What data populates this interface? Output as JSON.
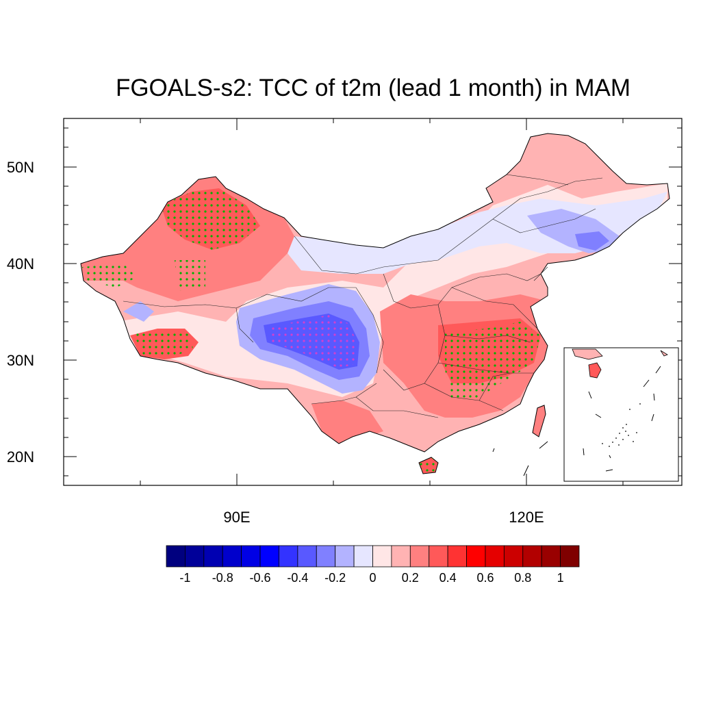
{
  "figure": {
    "title": "FGOALS-s2: TCC of t2m (lead 1 month) in MAM"
  },
  "axes": {
    "lat_labels": [
      "50N",
      "40N",
      "30N",
      "20N"
    ],
    "lon_labels": [
      "90E",
      "120E"
    ],
    "lat_values": [
      50,
      40,
      30,
      20
    ],
    "lon_values": [
      90,
      120
    ],
    "lat_range": [
      17,
      55
    ],
    "lon_range": [
      72,
      136
    ]
  },
  "colorbar": {
    "labels": [
      "-1",
      "-0.8",
      "-0.6",
      "-0.4",
      "-0.2",
      "0",
      "0.2",
      "0.4",
      "0.6",
      "0.8",
      "1"
    ],
    "colors": [
      "#00007f",
      "#000099",
      "#0000b2",
      "#0000cc",
      "#0000e5",
      "#0000ff",
      "#3333ff",
      "#5959ff",
      "#8080ff",
      "#b3b3ff",
      "#e6e6ff",
      "#ffe6e6",
      "#ffb3b3",
      "#ff8080",
      "#ff5959",
      "#ff3333",
      "#ff0000",
      "#e50000",
      "#cc0000",
      "#b20000",
      "#990000",
      "#7f0000"
    ]
  },
  "legend_colors": {
    "stipple_positive": "#00cc00",
    "stipple_negative": "#cc33cc",
    "map_outline": "#000000"
  }
}
